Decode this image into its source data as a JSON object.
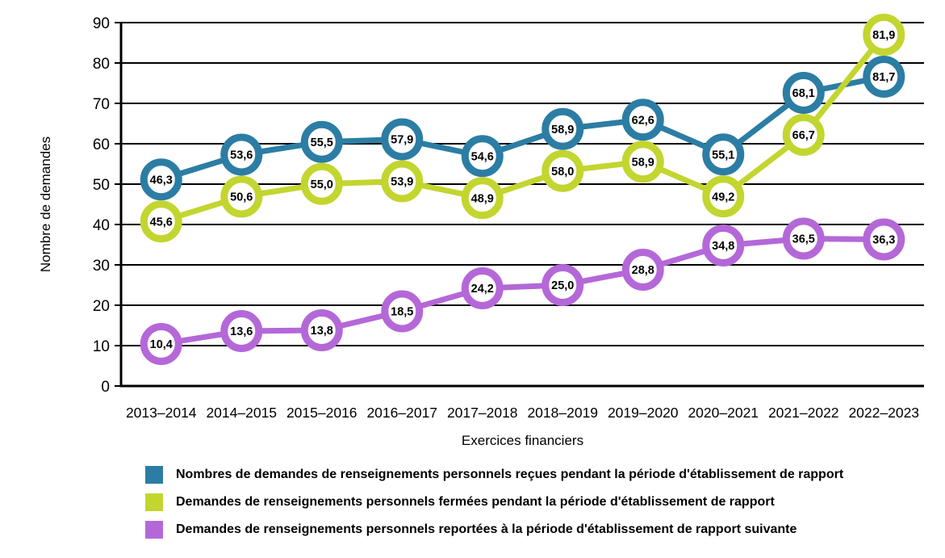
{
  "chart_data": {
    "type": "line",
    "title": "",
    "xlabel": "Exercices financiers",
    "ylabel": "Nombre de demandes",
    "ylim": [
      0,
      90
    ],
    "ytick_step": 10,
    "yticks": [
      "0",
      "10",
      "20",
      "30",
      "40",
      "50",
      "60",
      "70",
      "80",
      "90"
    ],
    "categories": [
      "2013–2014",
      "2014–2015",
      "2015–2016",
      "2016–2017",
      "2017–2018",
      "2018–2019",
      "2019–2020",
      "2020–2021",
      "2021–2022",
      "2022–2023"
    ],
    "grid": "horizontal",
    "legend_position": "bottom-left",
    "marker_style": "large-ring-circle-with-value-label",
    "series": [
      {
        "name": "Nombres de demandes de renseignements personnels reçues pendant la période d'établissement de rapport",
        "color": "#2C7DA4",
        "values": [
          46.3,
          53.6,
          55.5,
          57.9,
          54.6,
          58.9,
          62.6,
          55.1,
          68.1,
          81.7
        ],
        "labels": [
          "46,3",
          "53,6",
          "55,5",
          "57,9",
          "54,6",
          "58,9",
          "62,6",
          "55,1",
          "68,1",
          "81,7"
        ]
      },
      {
        "name": "Demandes de renseignements personnels fermées pendant la période d'établissement de rapport",
        "color": "#C3D52F",
        "values": [
          45.6,
          50.6,
          55.0,
          53.9,
          48.9,
          58.0,
          58.9,
          49.2,
          66.7,
          81.9
        ],
        "labels": [
          "45,6",
          "50,6",
          "55,0",
          "53,9",
          "48,9",
          "58,0",
          "58,9",
          "49,2",
          "66,7",
          "81,9"
        ]
      },
      {
        "name": "Demandes de renseignements personnels reportées à la période d'établissement de rapport suivante",
        "color": "#B468D8",
        "values": [
          10.4,
          13.6,
          13.8,
          18.5,
          24.2,
          25.0,
          28.8,
          34.8,
          36.5,
          36.3
        ],
        "labels": [
          "10,4",
          "13,6",
          "13,8",
          "18,5",
          "24,2",
          "25,0",
          "28,8",
          "34,8",
          "36,5",
          "36,3"
        ]
      }
    ]
  }
}
